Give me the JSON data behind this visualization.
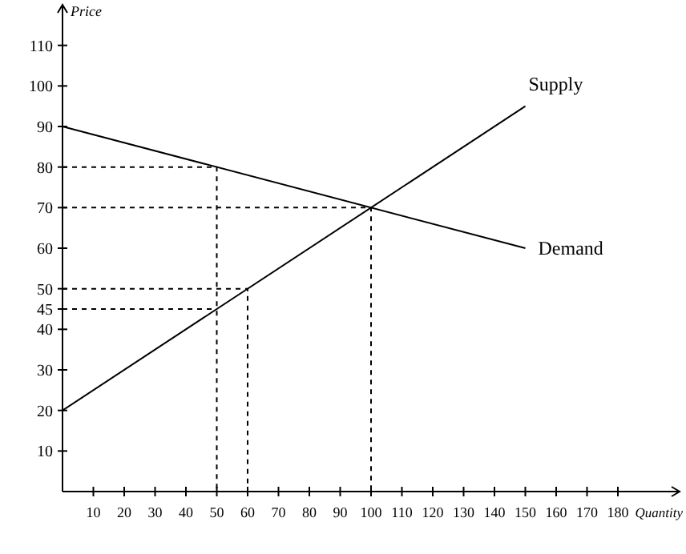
{
  "chart_data": {
    "type": "line",
    "xlabel": "Quantity",
    "ylabel": "Price",
    "xlim": [
      0,
      200
    ],
    "ylim": [
      0,
      120
    ],
    "xticks": [
      10,
      20,
      30,
      40,
      50,
      60,
      70,
      80,
      90,
      100,
      110,
      120,
      130,
      140,
      150,
      160,
      170,
      180
    ],
    "yticks": [
      10,
      20,
      30,
      40,
      45,
      50,
      60,
      70,
      80,
      90,
      100,
      110
    ],
    "grid": false,
    "legend": false,
    "marker": "none",
    "series": [
      {
        "name": "Supply",
        "color": "#000000",
        "x": [
          0,
          150
        ],
        "values": [
          20,
          95
        ],
        "line_style": "solid"
      },
      {
        "name": "Demand",
        "color": "#000000",
        "x": [
          0,
          150
        ],
        "values": [
          90,
          60
        ],
        "line_style": "solid"
      },
      {
        "color": "#000000",
        "x": [
          0,
          50,
          50
        ],
        "values": [
          80,
          80,
          0
        ],
        "line_style": "dashed"
      },
      {
        "color": "#000000",
        "x": [
          0,
          100,
          100
        ],
        "values": [
          70,
          70,
          0
        ],
        "line_style": "dashed"
      },
      {
        "color": "#000000",
        "x": [
          0,
          60,
          60
        ],
        "values": [
          50,
          50,
          0
        ],
        "line_style": "dashed"
      },
      {
        "color": "#000000",
        "x": [
          0,
          50
        ],
        "values": [
          45,
          45
        ],
        "line_style": "dashed"
      }
    ]
  }
}
